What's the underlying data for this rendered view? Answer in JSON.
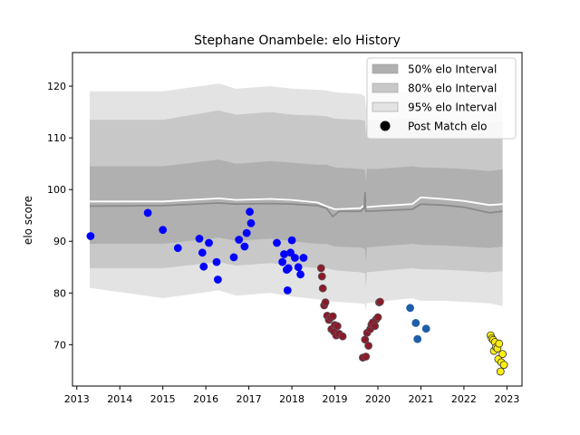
{
  "chart_data": {
    "type": "scatter",
    "title": "Stephane Onambele: elo History",
    "xlabel": "",
    "ylabel": "elo score",
    "xlim": [
      2012.9,
      2023.35
    ],
    "ylim": [
      62,
      126.5
    ],
    "x_ticks": [
      2013,
      2014,
      2015,
      2016,
      2017,
      2018,
      2019,
      2020,
      2021,
      2022,
      2023
    ],
    "x_tick_labels": [
      "2013",
      "2014",
      "2015",
      "2016",
      "2017",
      "2018",
      "2019",
      "2020",
      "2021",
      "2022",
      "2023"
    ],
    "y_ticks": [
      70,
      80,
      90,
      100,
      110,
      120
    ],
    "y_tick_labels": [
      "70",
      "80",
      "90",
      "100",
      "110",
      "120"
    ],
    "grid": false,
    "legend_position": "top-right",
    "legend": [
      {
        "label": "50% elo Interval",
        "kind": "patch",
        "color": "#b0b0b0"
      },
      {
        "label": "80% elo Interval",
        "kind": "patch",
        "color": "#c8c8c8"
      },
      {
        "label": "95% elo Interval",
        "kind": "patch",
        "color": "#e3e3e3"
      },
      {
        "label": "Post Match elo",
        "kind": "marker",
        "color": "#000000"
      }
    ],
    "intervals": {
      "x": [
        2013.3,
        2015.0,
        2016.3,
        2016.7,
        2017.5,
        2018.0,
        2018.6,
        2018.8,
        2019.0,
        2019.6,
        2019.7,
        2019.72,
        2019.74,
        2020.0,
        2020.8,
        2021.0,
        2021.5,
        2022.0,
        2022.6,
        2022.9
      ],
      "p95_upper": [
        119,
        119,
        120.5,
        119.5,
        120,
        119.5,
        119.3,
        119.2,
        118.8,
        118.5,
        118.0,
        115.5,
        118.5,
        119.5,
        118.8,
        118.5,
        118.5,
        118.4,
        118.0,
        118.3
      ],
      "p80_upper": [
        113.5,
        113.5,
        115.3,
        114.5,
        115,
        114.5,
        114.3,
        114.2,
        113.7,
        113.5,
        113.3,
        110.5,
        113.4,
        113.5,
        113.8,
        113.5,
        113.5,
        113.4,
        113.0,
        113.3
      ],
      "p50_upper": [
        104.5,
        104.5,
        105.8,
        105,
        105.5,
        105.2,
        104.8,
        104.8,
        104.3,
        104,
        103.8,
        101.5,
        104.0,
        104.0,
        104.5,
        104.3,
        104.2,
        104.0,
        103.6,
        103.9
      ],
      "p50_lower": [
        89.5,
        89.5,
        90.7,
        90.1,
        90.5,
        90.0,
        89.5,
        89.5,
        89.0,
        88.8,
        88.5,
        86.0,
        88.8,
        89.0,
        89.5,
        89.3,
        89.2,
        89.0,
        88.7,
        89.0
      ],
      "p80_lower": [
        84.8,
        84.8,
        86.0,
        85.3,
        85.8,
        85.3,
        84.8,
        84.8,
        84.4,
        84.0,
        83.8,
        81.0,
        84.0,
        84.2,
        84.8,
        84.6,
        84.5,
        84.3,
        84.0,
        84.2
      ],
      "p95_lower": [
        81.0,
        79.0,
        80.5,
        79.5,
        80,
        79.3,
        78.8,
        78.5,
        78.3,
        78.0,
        77.8,
        76.5,
        78.0,
        78.3,
        79.0,
        78.5,
        78.5,
        78.3,
        78.0,
        77.5
      ]
    },
    "mean_line": {
      "x": [
        2013.3,
        2015.0,
        2016.3,
        2016.7,
        2017.5,
        2018.0,
        2018.6,
        2018.8,
        2018.95,
        2019.1,
        2019.6,
        2019.68,
        2019.7,
        2019.72,
        2020.0,
        2020.8,
        2021.0,
        2021.5,
        2022.0,
        2022.6,
        2022.9
      ],
      "y": [
        96.8,
        96.9,
        97.4,
        97.2,
        97.3,
        97.2,
        96.9,
        96.4,
        94.8,
        95.8,
        95.8,
        96.5,
        99.5,
        95.8,
        95.9,
        96.2,
        97.2,
        97.0,
        96.6,
        95.5,
        95.8
      ]
    },
    "white_line": {
      "x": [
        2013.3,
        2015.0,
        2016.3,
        2016.7,
        2017.5,
        2018.0,
        2018.6,
        2018.8,
        2019.0,
        2019.6,
        2019.68,
        2019.7,
        2019.72,
        2020.0,
        2020.8,
        2021.0,
        2021.5,
        2022.0,
        2022.6,
        2022.9
      ],
      "y": [
        97.7,
        97.7,
        98.3,
        98.0,
        98.2,
        98.0,
        97.5,
        96.8,
        96.2,
        96.4,
        97.0,
        98.5,
        96.6,
        96.8,
        97.2,
        98.5,
        98.2,
        97.8,
        97.0,
        97.2
      ]
    },
    "series": [
      {
        "color": "#0000ff",
        "edgecolor": "#0000ff",
        "x": [
          2013.32,
          2014.65,
          2015.0,
          2015.35,
          2015.85,
          2015.92,
          2015.95,
          2016.07,
          2016.25,
          2016.28,
          2016.65,
          2016.77,
          2016.9,
          2016.95,
          2017.02,
          2017.05,
          2017.65,
          2017.78,
          2017.82,
          2017.88,
          2017.9,
          2017.92,
          2017.97,
          2018.0,
          2018.07,
          2018.15,
          2018.2,
          2018.27
        ],
        "y": [
          91.0,
          95.5,
          92.2,
          88.7,
          90.5,
          87.8,
          85.1,
          89.7,
          86.0,
          82.6,
          86.9,
          90.3,
          89.0,
          91.6,
          95.7,
          93.5,
          89.7,
          86.0,
          87.5,
          84.5,
          80.5,
          84.8,
          87.8,
          90.2,
          86.8,
          85.0,
          83.6,
          86.8
        ]
      },
      {
        "color": "#8b1a2b",
        "edgecolor": "#555555",
        "x": [
          2018.68,
          2018.7,
          2018.72,
          2018.75,
          2018.78,
          2018.82,
          2018.86,
          2018.9,
          2018.92,
          2018.95,
          2018.98,
          2019.0,
          2019.03,
          2019.06,
          2019.1,
          2019.18,
          2019.65,
          2019.7,
          2019.72,
          2019.75,
          2019.78,
          2019.82,
          2019.85,
          2019.88,
          2019.93,
          2019.96,
          2020.0,
          2020.03,
          2020.05
        ],
        "y": [
          84.8,
          83.2,
          80.9,
          77.6,
          78.2,
          75.6,
          74.8,
          75.2,
          73.0,
          75.5,
          72.5,
          73.8,
          71.8,
          73.6,
          72.1,
          71.6,
          67.5,
          71.0,
          67.7,
          72.3,
          69.8,
          73.0,
          73.9,
          74.3,
          73.6,
          74.9,
          75.3,
          78.2,
          78.3
        ]
      },
      {
        "color": "#1f5fa8",
        "edgecolor": "#1f5fa8",
        "x": [
          2020.75,
          2020.88,
          2020.92,
          2021.12
        ],
        "y": [
          77.1,
          74.2,
          71.1,
          73.1
        ]
      },
      {
        "color": "#ffee11",
        "edgecolor": "#333333",
        "x": [
          2022.62,
          2022.65,
          2022.68,
          2022.7,
          2022.72,
          2022.75,
          2022.78,
          2022.8,
          2022.82,
          2022.85,
          2022.87,
          2022.9,
          2022.93
        ],
        "y": [
          71.8,
          71.2,
          70.9,
          68.8,
          70.5,
          69.5,
          69.3,
          67.2,
          70.2,
          64.8,
          66.6,
          68.2,
          66.1
        ]
      }
    ]
  }
}
